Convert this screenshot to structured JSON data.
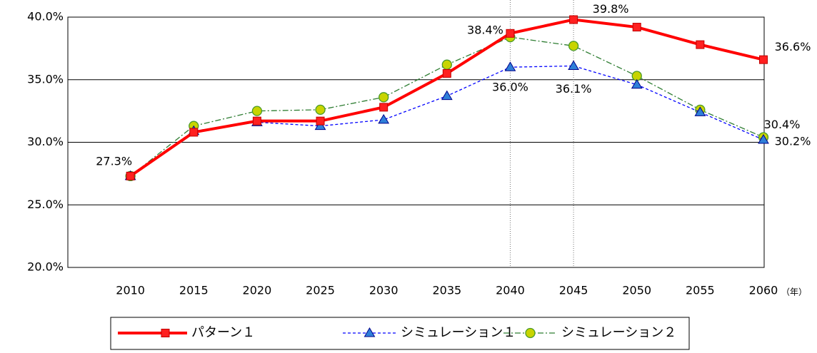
{
  "chart_data": {
    "type": "line",
    "x_label": "（年）",
    "categories": [
      "2010",
      "2015",
      "2020",
      "2025",
      "2030",
      "2035",
      "2040",
      "2045",
      "2050",
      "2055",
      "2060"
    ],
    "ylim": [
      20,
      40
    ],
    "yticks": [
      {
        "value": 20,
        "label": "20.0%"
      },
      {
        "value": 25,
        "label": "25.0%"
      },
      {
        "value": 30,
        "label": "30.0%"
      },
      {
        "value": 35,
        "label": "35.0%"
      },
      {
        "value": 40,
        "label": "40.0%"
      }
    ],
    "grid": true,
    "reference_categories": [
      "2040",
      "2045"
    ],
    "legend": "bottom",
    "series": [
      {
        "name": "パターン１",
        "color": "#ff0000",
        "marker": "square",
        "values": [
          27.3,
          30.8,
          31.7,
          31.7,
          32.8,
          35.5,
          38.7,
          39.8,
          39.2,
          37.8,
          36.6
        ],
        "value_labels": [
          "27.3%",
          null,
          null,
          null,
          null,
          null,
          null,
          "39.8%",
          null,
          null,
          "36.6%"
        ]
      },
      {
        "name": "シミュレーション１",
        "color": "#0000ff",
        "marker": "triangle",
        "values": [
          27.3,
          30.9,
          31.6,
          31.3,
          31.8,
          33.7,
          36.0,
          36.1,
          34.6,
          32.4,
          30.2
        ],
        "value_labels": [
          null,
          null,
          null,
          null,
          null,
          null,
          "36.0%",
          "36.1%",
          null,
          null,
          "30.2%"
        ]
      },
      {
        "name": "シミュレーション２",
        "color": "#2e7d32",
        "marker": "circle",
        "values": [
          27.3,
          31.3,
          32.5,
          32.6,
          33.6,
          36.2,
          38.4,
          37.7,
          35.3,
          32.6,
          30.4
        ],
        "value_labels": [
          null,
          null,
          null,
          null,
          null,
          null,
          "38.4%",
          null,
          null,
          null,
          "30.4%"
        ]
      }
    ]
  }
}
